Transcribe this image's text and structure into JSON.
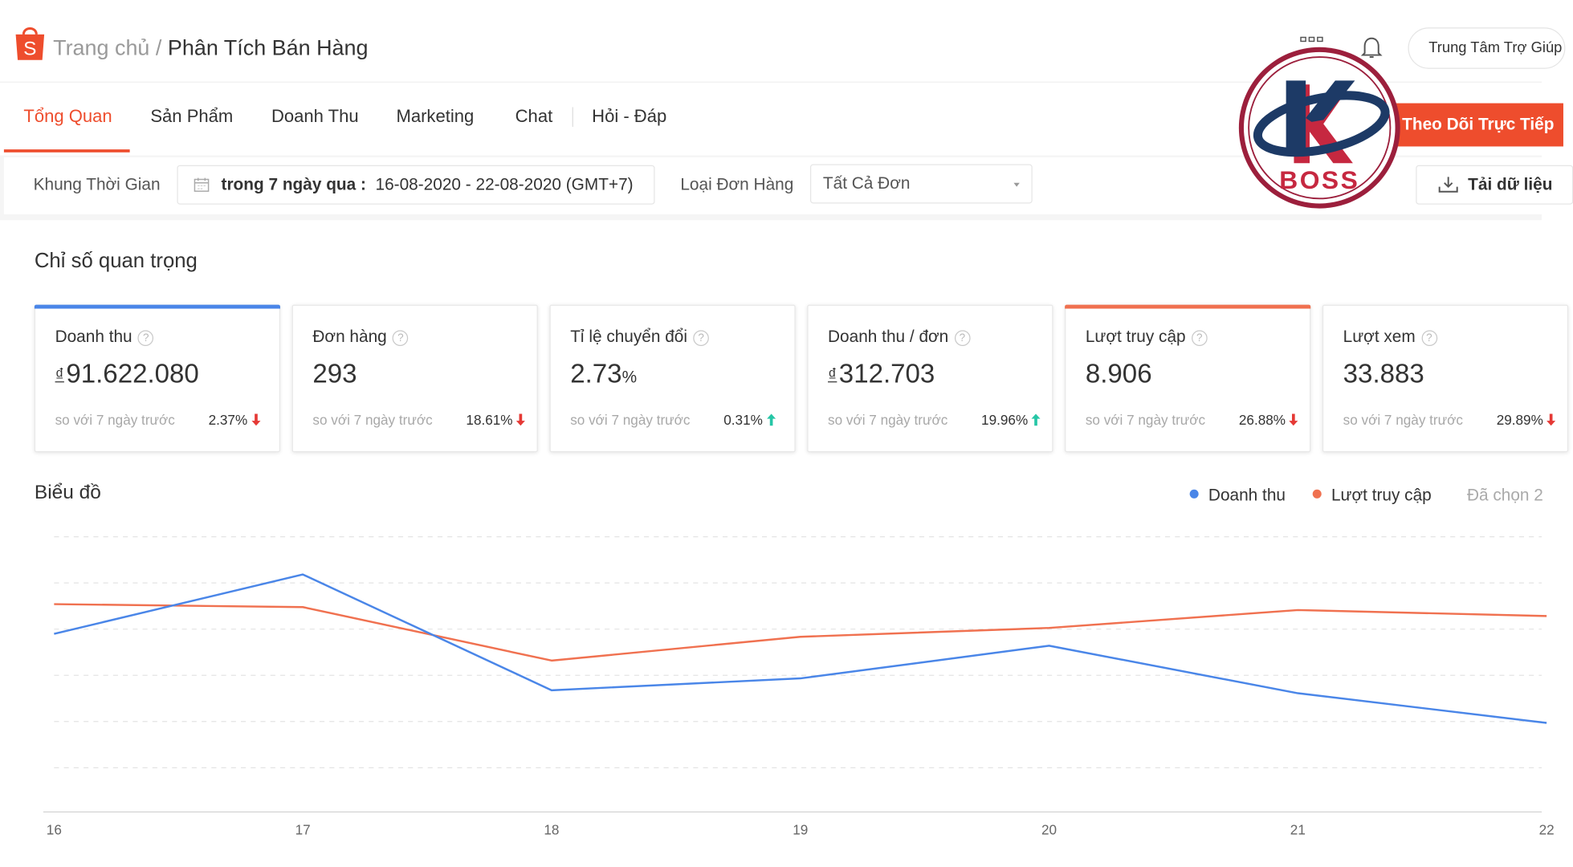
{
  "header": {
    "breadcrumb_home": "Trang chủ",
    "breadcrumb_sep": " / ",
    "breadcrumb_current": "Phân Tích Bán Hàng",
    "help_button": "Trung Tâm Trợ Giúp"
  },
  "tabs": [
    {
      "label": "Tổng Quan",
      "active": true
    },
    {
      "label": "Sản Phẩm",
      "active": false
    },
    {
      "label": "Doanh Thu",
      "active": false
    },
    {
      "label": "Marketing",
      "active": false
    },
    {
      "label": "Chat",
      "active": false
    },
    {
      "label": "Hỏi - Đáp",
      "active": false
    }
  ],
  "live_button": "Theo Dõi Trực Tiếp",
  "filters": {
    "time_label": "Khung Thời Gian",
    "date_prefix": "trong 7 ngày qua :",
    "date_range": "16-08-2020 - 22-08-2020 (GMT+7)",
    "order_type_label": "Loại Đơn Hàng",
    "order_type_value": "Tất Cả Đơn",
    "download_button": "Tải dữ liệu"
  },
  "metrics_title": "Chỉ số quan trọng",
  "currency_symbol": "₫",
  "metrics": [
    {
      "title": "Doanh thu",
      "value": "91.622.080",
      "currency": true,
      "compare": "so với 7 ngày trước",
      "change": "2.37%",
      "direction": "down",
      "selected_color": "#4a86e8"
    },
    {
      "title": "Đơn hàng",
      "value": "293",
      "currency": false,
      "compare": "so với 7 ngày trước",
      "change": "18.61%",
      "direction": "down",
      "selected_color": ""
    },
    {
      "title": "Tỉ lệ chuyển đổi",
      "value": "2.73",
      "unit": "%",
      "currency": false,
      "compare": "so với 7 ngày trước",
      "change": "0.31%",
      "direction": "up",
      "selected_color": ""
    },
    {
      "title": "Doanh thu / đơn",
      "value": "312.703",
      "currency": true,
      "compare": "so với 7 ngày trước",
      "change": "19.96%",
      "direction": "up",
      "selected_color": ""
    },
    {
      "title": "Lượt truy cập",
      "value": "8.906",
      "currency": false,
      "compare": "so với 7 ngày trước",
      "change": "26.88%",
      "direction": "down",
      "selected_color": "#f07150"
    },
    {
      "title": "Lượt xem",
      "value": "33.883",
      "currency": false,
      "compare": "so với 7 ngày trước",
      "change": "29.89%",
      "direction": "down",
      "selected_color": ""
    }
  ],
  "chart_section": {
    "title": "Biểu đồ",
    "legend": [
      {
        "label": "Doanh thu",
        "color": "#4a86e8"
      },
      {
        "label": "Lượt truy cập",
        "color": "#f07150"
      }
    ],
    "selected_note": "Đã chọn 2"
  },
  "colors": {
    "brand": "#ee4d2d",
    "up": "#26c6a6",
    "down": "#e53935"
  },
  "chart_data": {
    "type": "line",
    "categories": [
      "16",
      "17",
      "18",
      "19",
      "20",
      "21",
      "22"
    ],
    "series": [
      {
        "name": "Doanh thu",
        "color": "#4a86e8",
        "values": [
          0.6,
          0.8,
          0.41,
          0.45,
          0.56,
          0.4,
          0.3
        ]
      },
      {
        "name": "Lượt truy cập",
        "color": "#f07150",
        "values": [
          0.7,
          0.69,
          0.51,
          0.59,
          0.62,
          0.68,
          0.66
        ]
      }
    ],
    "ylim": [
      0,
      1
    ],
    "grid": true
  },
  "watermark": {
    "letter": "K",
    "text": "BOSS"
  }
}
